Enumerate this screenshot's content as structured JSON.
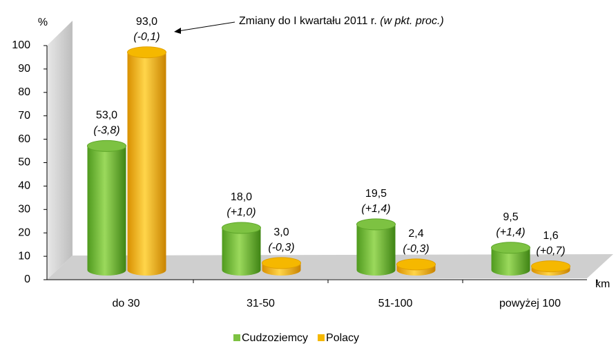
{
  "chart_data": {
    "type": "bar3d",
    "y_label": "%",
    "x_unit": "km",
    "annotation": "Zmiany do I kwartału 2011 r.",
    "annotation_italic": "(w pkt. proc.)",
    "categories": [
      "do 30",
      "31-50",
      "51-100",
      "powyżej 100"
    ],
    "series": [
      {
        "name": "Cudzoziemcy",
        "color": "#7dc242",
        "values": [
          53.0,
          18.0,
          19.5,
          9.5
        ],
        "value_labels": [
          "53,0",
          "18,0",
          "19,5",
          "9,5"
        ],
        "change_labels": [
          "(-3,8)",
          "(+1,0)",
          "(+1,4)",
          "(+1,4)"
        ]
      },
      {
        "name": "Polacy",
        "color": "#f5b800",
        "values": [
          93.0,
          3.0,
          2.4,
          1.6
        ],
        "value_labels": [
          "93,0",
          "3,0",
          "2,4",
          "1,6"
        ],
        "change_labels": [
          "(-0,1)",
          "(-0,3)",
          "(-0,3)",
          "(+0,7)"
        ]
      }
    ],
    "ylim": [
      0,
      100
    ],
    "yticks": [
      0,
      10,
      20,
      30,
      40,
      50,
      60,
      70,
      80,
      90,
      100
    ]
  }
}
